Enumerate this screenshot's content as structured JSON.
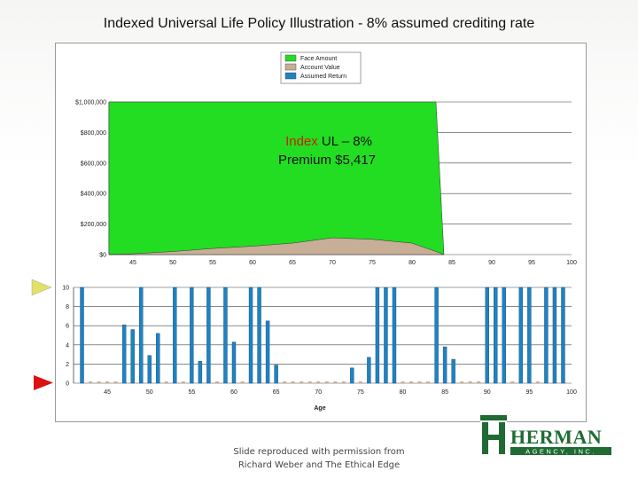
{
  "slide": {
    "title": "Indexed Universal Life Policy Illustration - 8% assumed crediting rate",
    "credit_line1": "Slide reproduced with permission from",
    "credit_line2": "Richard Weber and The Ethical Edge"
  },
  "logo": {
    "name": "HERMAN",
    "sub": "AGENCY, INC."
  },
  "colors": {
    "face_amount": "#22dd22",
    "account_value": "#c8ae96",
    "assumed_return": "#1f82c2",
    "arrow_top": "#e3e06a",
    "arrow_bottom": "#dd1111",
    "logo": "#1f6b33"
  },
  "chart_data": [
    {
      "type": "area",
      "annotation_line1_prefix": "Index",
      "annotation_line1_rest": " UL – 8%",
      "annotation_line2": "Premium $5,417",
      "legend": [
        "Face Amount",
        "Account Value",
        "Assumed Return"
      ],
      "legend_placement": "top-center",
      "x_ticks": [
        "45",
        "50",
        "55",
        "60",
        "65",
        "70",
        "75",
        "80",
        "85",
        "90",
        "95",
        "100"
      ],
      "y_ticks": [
        "$0",
        "$200,000",
        "$400,000",
        "$600,000",
        "$800,000",
        "$1,000,000"
      ],
      "ylim": [
        0,
        1000000
      ],
      "xlim": [
        42,
        100
      ],
      "grid": true,
      "series": [
        {
          "name": "Face Amount",
          "x": [
            42,
            45,
            50,
            55,
            60,
            65,
            70,
            75,
            80,
            83,
            84
          ],
          "values": [
            1000000,
            1000000,
            1000000,
            1000000,
            1000000,
            1000000,
            1000000,
            1000000,
            1000000,
            1000000,
            0
          ]
        },
        {
          "name": "Account Value",
          "x": [
            42,
            45,
            50,
            55,
            60,
            65,
            70,
            75,
            80,
            83,
            84
          ],
          "values": [
            0,
            5000,
            20000,
            40000,
            55000,
            75000,
            110000,
            100000,
            75000,
            20000,
            0
          ]
        }
      ]
    },
    {
      "type": "bar",
      "series_name": "Assumed Return",
      "xlabel": "Age",
      "x_ticks": [
        "45",
        "50",
        "55",
        "60",
        "65",
        "70",
        "75",
        "80",
        "85",
        "90",
        "95",
        "100"
      ],
      "y_ticks": [
        "0",
        "2",
        "4",
        "6",
        "8",
        "10"
      ],
      "ylim": [
        0,
        10
      ],
      "xlim": [
        41,
        100
      ],
      "grid": true,
      "x": [
        42,
        43,
        44,
        45,
        46,
        47,
        48,
        49,
        50,
        51,
        52,
        53,
        54,
        55,
        56,
        57,
        58,
        59,
        60,
        61,
        62,
        63,
        64,
        65,
        66,
        67,
        68,
        69,
        70,
        71,
        72,
        73,
        74,
        75,
        76,
        77,
        78,
        79,
        80,
        81,
        82,
        83,
        84,
        85,
        86,
        87,
        88,
        89,
        90,
        91,
        92,
        93,
        94,
        95,
        96,
        97,
        98,
        99
      ],
      "values": [
        10,
        0,
        0,
        0,
        0,
        6.1,
        5.6,
        10,
        2.9,
        5.2,
        0,
        10,
        0,
        10,
        2.3,
        10,
        0,
        10,
        4.3,
        0,
        10,
        10,
        6.5,
        1.9,
        0,
        0,
        0,
        0,
        0,
        0,
        0,
        0,
        1.6,
        0,
        2.7,
        10,
        10,
        10,
        0,
        0,
        0,
        0,
        10,
        3.8,
        2.5,
        0,
        0,
        0,
        10,
        10,
        10,
        0,
        10,
        10,
        0,
        10,
        10,
        10
      ]
    }
  ]
}
